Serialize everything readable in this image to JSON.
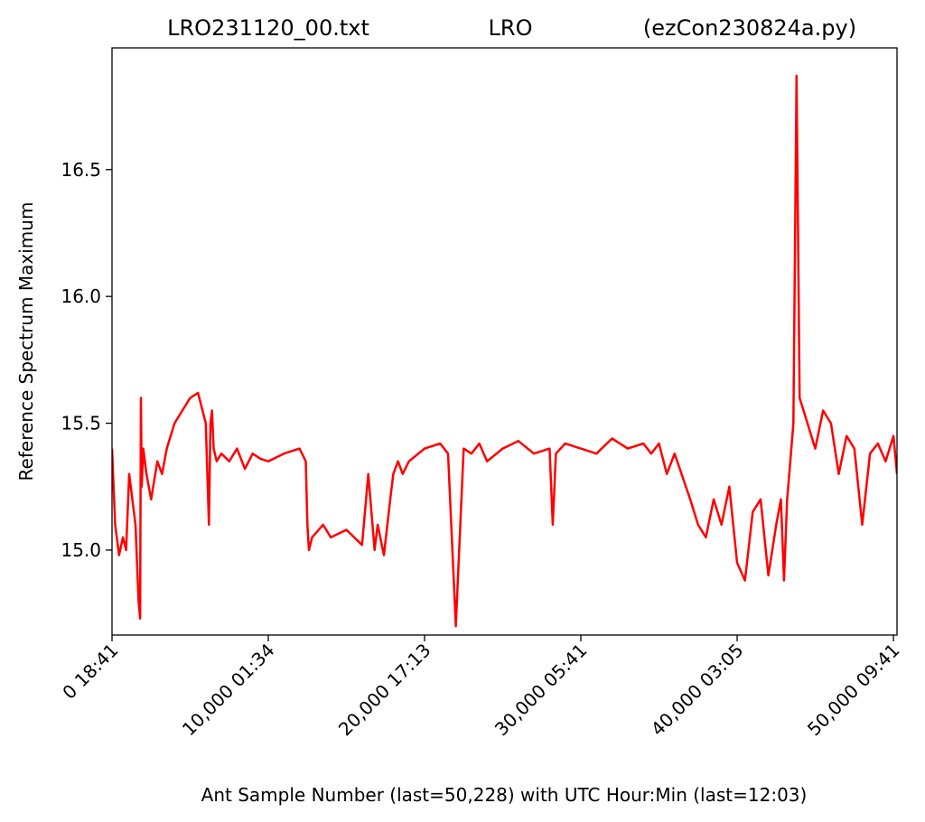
{
  "chart_data": {
    "type": "line",
    "title_left": "LRO231120_00.txt",
    "title_center": "LRO",
    "title_right": "(ezCon230824a.py)",
    "xlabel": "Ant Sample Number (last=50,228) with UTC Hour:Min (last=12:03)",
    "ylabel": "Reference Spectrum Maximum",
    "xlim": [
      0,
      50228
    ],
    "ylim": [
      14.665,
      16.98
    ],
    "yticks": [
      {
        "value": 15.0,
        "label": "15.0"
      },
      {
        "value": 15.5,
        "label": "15.5"
      },
      {
        "value": 16.0,
        "label": "16.0"
      },
      {
        "value": 16.5,
        "label": "16.5"
      }
    ],
    "xticks": [
      {
        "value": 0,
        "label": "0  18:41"
      },
      {
        "value": 10000,
        "label": "10,000  01:34"
      },
      {
        "value": 20000,
        "label": "20,000  17:13"
      },
      {
        "value": 30000,
        "label": "30,000  05:41"
      },
      {
        "value": 40000,
        "label": "40,000  03:05"
      },
      {
        "value": 50000,
        "label": "50,000  09:41"
      }
    ],
    "line_color": "#ff0000",
    "series": [
      {
        "x": [
          0,
          200,
          450,
          700,
          900,
          1100,
          1300,
          1500,
          1700,
          1800,
          1850,
          1900,
          2000,
          2200,
          2500,
          2900,
          3200,
          3500,
          4000,
          4500,
          5000,
          5500,
          6000,
          6200,
          6300,
          6400,
          6500,
          6700,
          7000,
          7500,
          8000,
          8500,
          9000,
          9500,
          10000,
          11000,
          12000,
          12400,
          12500,
          12600,
          12800,
          13500,
          14000,
          15000,
          16000,
          16400,
          16800,
          17000,
          17400,
          17800,
          18000,
          18300,
          18600,
          19000,
          20000,
          21000,
          21500,
          22000,
          22500,
          23000,
          23500,
          24000,
          25000,
          26000,
          27000,
          28000,
          28200,
          28400,
          29000,
          30000,
          31000,
          32000,
          33000,
          34000,
          34500,
          35000,
          35500,
          36000,
          37000,
          37500,
          38000,
          38500,
          39000,
          39500,
          40000,
          40500,
          41000,
          41500,
          42000,
          42500,
          42800,
          43000,
          43200,
          43400,
          43600,
          43800,
          44000,
          44500,
          45000,
          45500,
          46000,
          46500,
          47000,
          47500,
          48000,
          48500,
          49000,
          49500,
          50000,
          50228
        ],
        "y": [
          15.4,
          15.1,
          14.98,
          15.05,
          15.0,
          15.3,
          15.2,
          15.1,
          14.8,
          14.73,
          15.6,
          15.25,
          15.4,
          15.3,
          15.2,
          15.35,
          15.3,
          15.4,
          15.5,
          15.55,
          15.6,
          15.62,
          15.5,
          15.1,
          15.5,
          15.55,
          15.4,
          15.35,
          15.38,
          15.35,
          15.4,
          15.32,
          15.38,
          15.36,
          15.35,
          15.38,
          15.4,
          15.35,
          15.1,
          15.0,
          15.05,
          15.1,
          15.05,
          15.08,
          15.02,
          15.3,
          15.0,
          15.1,
          14.98,
          15.2,
          15.3,
          15.35,
          15.3,
          15.35,
          15.4,
          15.42,
          15.38,
          14.7,
          15.4,
          15.38,
          15.42,
          15.35,
          15.4,
          15.43,
          15.38,
          15.4,
          15.1,
          15.38,
          15.42,
          15.4,
          15.38,
          15.44,
          15.4,
          15.42,
          15.38,
          15.42,
          15.3,
          15.38,
          15.2,
          15.1,
          15.05,
          15.2,
          15.1,
          15.25,
          14.95,
          14.88,
          15.15,
          15.2,
          14.9,
          15.1,
          15.2,
          14.88,
          15.2,
          15.35,
          15.5,
          16.87,
          15.6,
          15.5,
          15.4,
          15.55,
          15.5,
          15.3,
          15.45,
          15.4,
          15.1,
          15.38,
          15.42,
          15.35,
          15.45,
          15.3
        ]
      }
    ]
  }
}
